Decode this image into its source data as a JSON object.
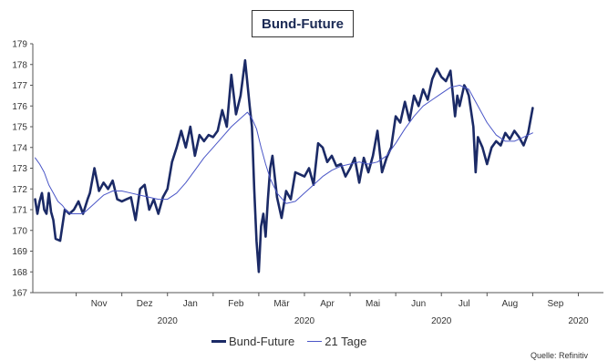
{
  "chart_data": {
    "type": "line",
    "title": "Bund-Future",
    "ylim": [
      167,
      179
    ],
    "y_ticks": [
      "167",
      "168",
      "169",
      "170",
      "171",
      "172",
      "173",
      "174",
      "175",
      "176",
      "177",
      "178",
      "179"
    ],
    "month_labels": [
      "Nov",
      "Dez",
      "Jan",
      "Feb",
      "Mär",
      "Apr",
      "Mai",
      "Jun",
      "Jul",
      "Aug",
      "Sep"
    ],
    "year_labels": [
      {
        "label": "2020",
        "month_index": 2
      },
      {
        "label": "2020",
        "month_index": 5
      },
      {
        "label": "2020",
        "month_index": 8
      },
      {
        "label": "2020",
        "month_index": 11
      }
    ],
    "months_span": [
      -0.95,
      11.55
    ],
    "series": [
      {
        "name": "Bund-Future",
        "color": "#1b2a66",
        "points": [
          [
            -0.9,
            171.5
          ],
          [
            -0.85,
            170.8
          ],
          [
            -0.8,
            171.4
          ],
          [
            -0.75,
            171.8
          ],
          [
            -0.7,
            171.0
          ],
          [
            -0.65,
            170.8
          ],
          [
            -0.6,
            171.8
          ],
          [
            -0.55,
            170.9
          ],
          [
            -0.5,
            170.5
          ],
          [
            -0.45,
            169.6
          ],
          [
            -0.35,
            169.5
          ],
          [
            -0.25,
            171.0
          ],
          [
            -0.15,
            170.8
          ],
          [
            -0.05,
            171.0
          ],
          [
            0.05,
            171.4
          ],
          [
            0.15,
            170.8
          ],
          [
            0.25,
            171.5
          ],
          [
            0.3,
            171.8
          ],
          [
            0.4,
            173.0
          ],
          [
            0.5,
            171.9
          ],
          [
            0.6,
            172.3
          ],
          [
            0.7,
            172.0
          ],
          [
            0.8,
            172.4
          ],
          [
            0.9,
            171.5
          ],
          [
            1.0,
            171.4
          ],
          [
            1.1,
            171.5
          ],
          [
            1.2,
            171.6
          ],
          [
            1.3,
            170.5
          ],
          [
            1.4,
            172.0
          ],
          [
            1.5,
            172.2
          ],
          [
            1.6,
            171.0
          ],
          [
            1.7,
            171.5
          ],
          [
            1.8,
            170.8
          ],
          [
            1.9,
            171.6
          ],
          [
            2.0,
            172.0
          ],
          [
            2.1,
            173.3
          ],
          [
            2.2,
            174.0
          ],
          [
            2.3,
            174.8
          ],
          [
            2.4,
            174.0
          ],
          [
            2.5,
            175.0
          ],
          [
            2.6,
            173.6
          ],
          [
            2.7,
            174.6
          ],
          [
            2.8,
            174.3
          ],
          [
            2.9,
            174.6
          ],
          [
            3.0,
            174.5
          ],
          [
            3.1,
            174.8
          ],
          [
            3.2,
            175.8
          ],
          [
            3.3,
            175.0
          ],
          [
            3.4,
            177.5
          ],
          [
            3.5,
            175.6
          ],
          [
            3.6,
            176.5
          ],
          [
            3.7,
            178.2
          ],
          [
            3.8,
            176.0
          ],
          [
            3.85,
            175.0
          ],
          [
            3.9,
            172.0
          ],
          [
            3.95,
            169.5
          ],
          [
            4.0,
            168.0
          ],
          [
            4.05,
            170.2
          ],
          [
            4.1,
            170.8
          ],
          [
            4.15,
            169.7
          ],
          [
            4.2,
            171.5
          ],
          [
            4.25,
            173.0
          ],
          [
            4.3,
            173.6
          ],
          [
            4.4,
            171.6
          ],
          [
            4.5,
            170.6
          ],
          [
            4.6,
            171.9
          ],
          [
            4.7,
            171.5
          ],
          [
            4.8,
            172.8
          ],
          [
            4.9,
            172.7
          ],
          [
            5.0,
            172.6
          ],
          [
            5.1,
            173.0
          ],
          [
            5.2,
            172.2
          ],
          [
            5.3,
            174.2
          ],
          [
            5.4,
            174.0
          ],
          [
            5.5,
            173.3
          ],
          [
            5.6,
            173.6
          ],
          [
            5.7,
            173.1
          ],
          [
            5.8,
            173.2
          ],
          [
            5.9,
            172.6
          ],
          [
            6.0,
            173.0
          ],
          [
            6.1,
            173.5
          ],
          [
            6.2,
            172.3
          ],
          [
            6.3,
            173.5
          ],
          [
            6.4,
            172.8
          ],
          [
            6.5,
            173.6
          ],
          [
            6.6,
            174.8
          ],
          [
            6.7,
            172.8
          ],
          [
            6.8,
            173.5
          ],
          [
            6.9,
            174.0
          ],
          [
            7.0,
            175.5
          ],
          [
            7.1,
            175.2
          ],
          [
            7.2,
            176.2
          ],
          [
            7.3,
            175.3
          ],
          [
            7.4,
            176.5
          ],
          [
            7.5,
            176.0
          ],
          [
            7.6,
            176.8
          ],
          [
            7.7,
            176.3
          ],
          [
            7.8,
            177.3
          ],
          [
            7.9,
            177.8
          ],
          [
            8.0,
            177.4
          ],
          [
            8.1,
            177.2
          ],
          [
            8.2,
            177.7
          ],
          [
            8.25,
            176.6
          ],
          [
            8.3,
            175.5
          ],
          [
            8.35,
            176.5
          ],
          [
            8.4,
            176.0
          ],
          [
            8.5,
            177.0
          ],
          [
            8.55,
            176.8
          ],
          [
            8.6,
            176.5
          ],
          [
            8.7,
            175.0
          ],
          [
            8.75,
            172.8
          ],
          [
            8.8,
            174.5
          ],
          [
            8.9,
            174.0
          ],
          [
            9.0,
            173.2
          ],
          [
            9.1,
            174.0
          ],
          [
            9.2,
            174.3
          ],
          [
            9.3,
            174.1
          ],
          [
            9.4,
            174.7
          ],
          [
            9.5,
            174.4
          ],
          [
            9.6,
            174.8
          ],
          [
            9.7,
            174.5
          ],
          [
            9.8,
            174.1
          ],
          [
            9.9,
            174.7
          ],
          [
            10.0,
            175.9
          ]
        ]
      },
      {
        "name": "21 Tage",
        "color": "#4a56c7",
        "points": [
          [
            -0.9,
            173.5
          ],
          [
            -0.8,
            173.2
          ],
          [
            -0.7,
            172.8
          ],
          [
            -0.6,
            172.2
          ],
          [
            -0.5,
            171.8
          ],
          [
            -0.4,
            171.4
          ],
          [
            -0.3,
            171.2
          ],
          [
            -0.2,
            170.9
          ],
          [
            -0.1,
            170.8
          ],
          [
            0.0,
            170.8
          ],
          [
            0.1,
            170.8
          ],
          [
            0.2,
            170.9
          ],
          [
            0.3,
            171.1
          ],
          [
            0.4,
            171.3
          ],
          [
            0.5,
            171.5
          ],
          [
            0.6,
            171.7
          ],
          [
            0.7,
            171.8
          ],
          [
            0.8,
            171.9
          ],
          [
            0.9,
            171.9
          ],
          [
            1.0,
            171.9
          ],
          [
            1.2,
            171.8
          ],
          [
            1.4,
            171.7
          ],
          [
            1.6,
            171.6
          ],
          [
            1.8,
            171.5
          ],
          [
            2.0,
            171.5
          ],
          [
            2.2,
            171.8
          ],
          [
            2.4,
            172.3
          ],
          [
            2.6,
            172.9
          ],
          [
            2.8,
            173.5
          ],
          [
            3.0,
            174.0
          ],
          [
            3.2,
            174.5
          ],
          [
            3.4,
            175.0
          ],
          [
            3.6,
            175.4
          ],
          [
            3.75,
            175.7
          ],
          [
            3.85,
            175.4
          ],
          [
            3.95,
            174.9
          ],
          [
            4.05,
            174.0
          ],
          [
            4.15,
            173.2
          ],
          [
            4.25,
            172.5
          ],
          [
            4.4,
            171.8
          ],
          [
            4.6,
            171.3
          ],
          [
            4.8,
            171.4
          ],
          [
            5.0,
            171.8
          ],
          [
            5.2,
            172.2
          ],
          [
            5.4,
            172.6
          ],
          [
            5.6,
            172.9
          ],
          [
            5.8,
            173.1
          ],
          [
            6.0,
            173.2
          ],
          [
            6.2,
            173.3
          ],
          [
            6.4,
            173.2
          ],
          [
            6.6,
            173.3
          ],
          [
            6.8,
            173.6
          ],
          [
            7.0,
            174.2
          ],
          [
            7.2,
            174.9
          ],
          [
            7.4,
            175.5
          ],
          [
            7.6,
            176.0
          ],
          [
            7.8,
            176.3
          ],
          [
            8.0,
            176.6
          ],
          [
            8.2,
            176.9
          ],
          [
            8.4,
            177.0
          ],
          [
            8.6,
            176.8
          ],
          [
            8.8,
            176.0
          ],
          [
            9.0,
            175.2
          ],
          [
            9.2,
            174.6
          ],
          [
            9.4,
            174.3
          ],
          [
            9.6,
            174.3
          ],
          [
            9.8,
            174.5
          ],
          [
            10.0,
            174.7
          ]
        ]
      }
    ]
  },
  "legend": {
    "items": [
      {
        "label": "Bund-Future",
        "color": "#1b2a66"
      },
      {
        "label": "21 Tage",
        "color": "#4a56c7"
      }
    ]
  },
  "source": "Quelle: Refinitiv"
}
